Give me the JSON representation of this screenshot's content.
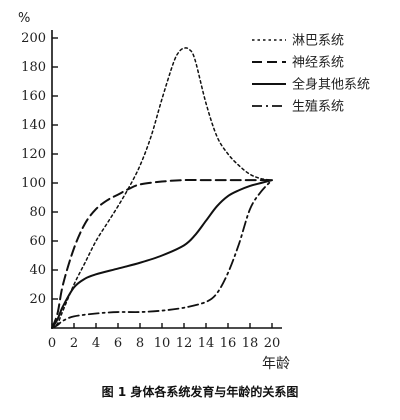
{
  "chart_data": {
    "type": "line",
    "title": "",
    "caption": "图 1   身体各系统发育与年龄的关系图",
    "ylabel": "%",
    "xlabel": "年龄",
    "xlim": [
      0,
      20
    ],
    "ylim": [
      0,
      200
    ],
    "xticks": [
      0,
      2,
      4,
      6,
      8,
      10,
      12,
      14,
      16,
      18,
      20
    ],
    "yticks": [
      20,
      40,
      60,
      80,
      100,
      120,
      140,
      160,
      180,
      200
    ],
    "grid": false,
    "legend_position": "top-right",
    "series": [
      {
        "name": "淋巴系统",
        "style": "dotted",
        "x": [
          0,
          0.5,
          1,
          2,
          3,
          4,
          5,
          6,
          7,
          8,
          9,
          10,
          11,
          11.5,
          12,
          12.5,
          13,
          14,
          15,
          16,
          17,
          18,
          19,
          20
        ],
        "y": [
          0,
          3,
          12,
          30,
          45,
          60,
          72,
          84,
          97,
          112,
          132,
          158,
          182,
          190,
          193,
          192,
          185,
          155,
          132,
          120,
          112,
          106,
          103,
          102
        ]
      },
      {
        "name": "神经系统",
        "style": "dashed",
        "x": [
          0,
          0.5,
          1,
          2,
          3,
          4,
          5,
          6,
          7,
          8,
          10,
          12,
          14,
          16,
          18,
          20
        ],
        "y": [
          0,
          10,
          30,
          55,
          72,
          82,
          88,
          92,
          96,
          99,
          101,
          102,
          102,
          102,
          102,
          102
        ]
      },
      {
        "name": "全身其他系统",
        "style": "solid",
        "x": [
          0,
          0.5,
          1,
          2,
          3,
          4,
          6,
          8,
          10,
          12,
          13,
          14,
          15,
          16,
          17,
          18,
          19,
          20
        ],
        "y": [
          0,
          6,
          15,
          28,
          34,
          37,
          41,
          45,
          50,
          57,
          64,
          74,
          84,
          91,
          95,
          98,
          100,
          102
        ]
      },
      {
        "name": "生殖系统",
        "style": "dashdot",
        "x": [
          0,
          0.5,
          1,
          2,
          4,
          6,
          8,
          10,
          12,
          14,
          15,
          16,
          17,
          18,
          19,
          20
        ],
        "y": [
          0,
          2,
          5,
          8,
          10,
          11,
          11,
          12,
          14,
          18,
          24,
          38,
          58,
          82,
          94,
          102
        ]
      }
    ]
  }
}
